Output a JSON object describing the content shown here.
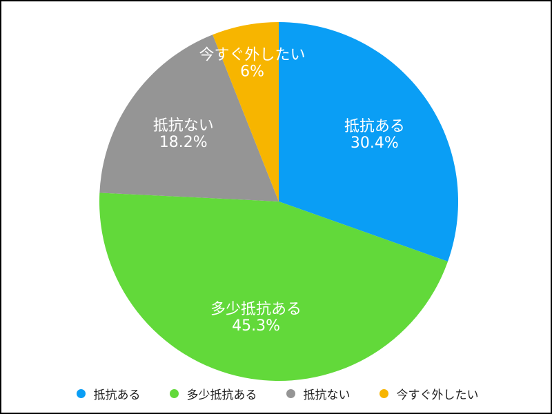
{
  "chart_data": {
    "type": "pie",
    "slices": [
      {
        "label": "抵抗ある",
        "value": 30.4,
        "value_label": "30.4%",
        "color": "#0a9ef5"
      },
      {
        "label": "多少抵抗ある",
        "value": 45.3,
        "value_label": "45.3%",
        "color": "#62d93a"
      },
      {
        "label": "抵抗ない",
        "value": 18.2,
        "value_label": "18.2%",
        "color": "#959595"
      },
      {
        "label": "今すぐ外したい",
        "value": 6,
        "value_label": "6%",
        "color": "#f7b500"
      }
    ],
    "start": "12 o'clock",
    "direction": "clockwise",
    "legend_position": "bottom"
  },
  "legend": {
    "items": [
      {
        "label": "抵抗ある",
        "color": "#0a9ef5"
      },
      {
        "label": "多少抵抗ある",
        "color": "#62d93a"
      },
      {
        "label": "抵抗ない",
        "color": "#959595"
      },
      {
        "label": "今すぐ外したい",
        "color": "#f7b500"
      }
    ]
  }
}
